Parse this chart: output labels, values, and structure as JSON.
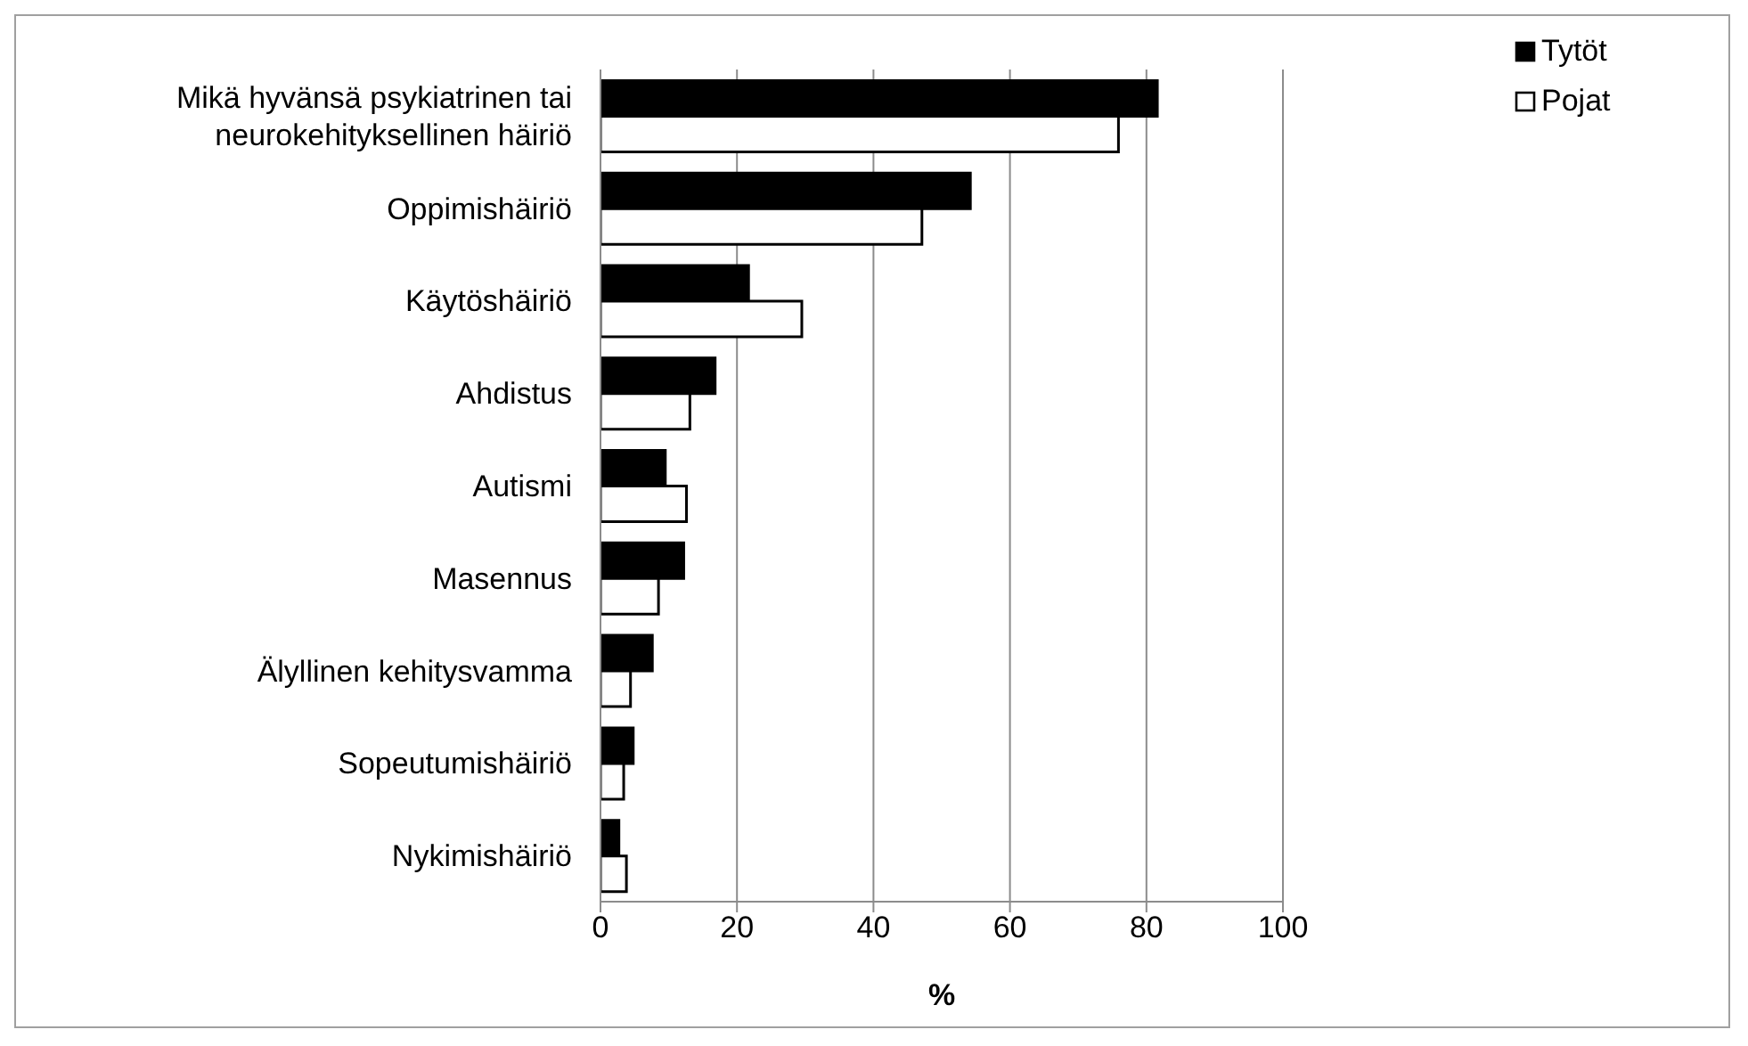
{
  "chart_data": {
    "type": "bar",
    "orientation": "horizontal",
    "xlabel": "%",
    "categories": [
      "Mikä hyvänsä psykiatrinen tai neurokehityksellinen häiriö",
      "Oppimishäiriö",
      "Käytöshäiriö",
      "Ahdistus",
      "Autismi",
      "Masennus",
      "Älyllinen kehitysvamma",
      "Sopeutumishäiriö",
      "Nykimishäiriö"
    ],
    "series": [
      {
        "name": "Tytöt",
        "color": "#000000",
        "values": [
          81.6,
          54.2,
          21.7,
          16.8,
          9.5,
          12.2,
          7.6,
          4.8,
          2.7
        ]
      },
      {
        "name": "Pojat",
        "color": "#ffffff",
        "values": [
          75.9,
          47.1,
          29.5,
          13.1,
          12.6,
          8.5,
          4.4,
          3.4,
          3.8
        ]
      }
    ],
    "xlim": [
      0,
      100
    ],
    "xticks": [
      0,
      20,
      40,
      60,
      80,
      100
    ],
    "grid": "x",
    "legend": "top right"
  }
}
